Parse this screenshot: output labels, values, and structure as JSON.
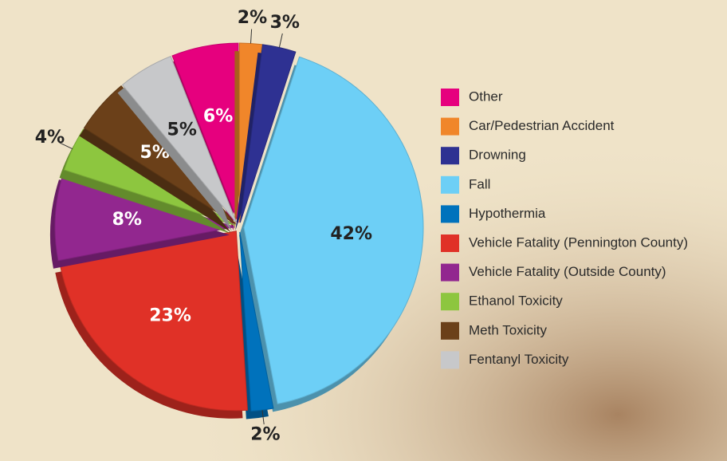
{
  "chart_data": {
    "type": "pie",
    "categories": [
      "Other",
      "Car/Pedestrian Accident",
      "Drowning",
      "Fall",
      "Hypothermia",
      "Vehicle Fatality (Pennington County)",
      "Vehicle Fatality (Outside County)",
      "Ethanol Toxicity",
      "Meth Toxicity",
      "Fentanyl Toxicity"
    ],
    "values": [
      6,
      2,
      3,
      42,
      2,
      23,
      8,
      4,
      5,
      5
    ],
    "value_labels": [
      "6%",
      "2%",
      "3%",
      "42%",
      "2%",
      "23%",
      "8%",
      "4%",
      "5%",
      "5%"
    ],
    "colors": [
      "#e6007e",
      "#f0862a",
      "#2e3192",
      "#6dcff6",
      "#0072bc",
      "#e03127",
      "#92278f",
      "#8dc63f",
      "#6b4019",
      "#c7c8ca"
    ],
    "legend": "right"
  }
}
